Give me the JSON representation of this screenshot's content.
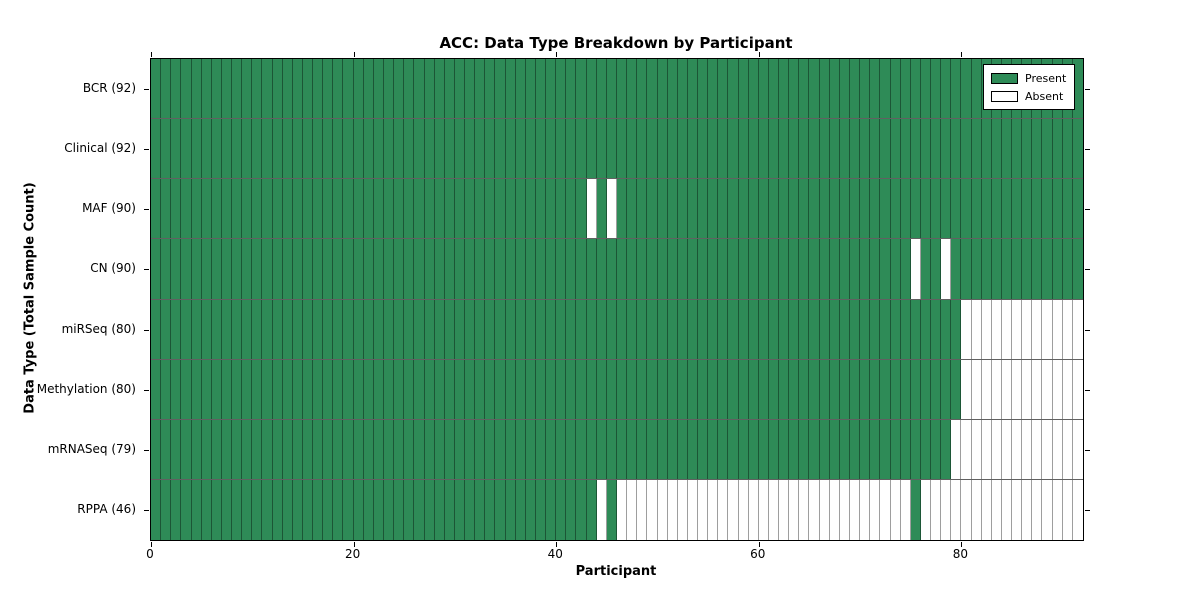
{
  "colors": {
    "present": "#2e8b57",
    "absent": "#ffffff",
    "frame": "#000000"
  },
  "chart_data": {
    "type": "heatmap",
    "title": "ACC: Data Type Breakdown by Participant",
    "xlabel": "Participant",
    "ylabel": "Data Type (Total Sample Count)",
    "xlim": [
      0,
      92
    ],
    "n_participants": 92,
    "x_ticks": [
      0,
      20,
      40,
      60,
      80
    ],
    "grid": "off",
    "legend_position": "upper right",
    "legend": [
      {
        "label": "Present",
        "color": "#2e8b57"
      },
      {
        "label": "Absent",
        "color": "#ffffff"
      }
    ],
    "rows": [
      {
        "label": "BCR (92)",
        "data_type": "BCR",
        "total": 92,
        "absent_participants": []
      },
      {
        "label": "Clinical (92)",
        "data_type": "Clinical",
        "total": 92,
        "absent_participants": []
      },
      {
        "label": "MAF (90)",
        "data_type": "MAF",
        "total": 90,
        "absent_participants": [
          43,
          45
        ]
      },
      {
        "label": "CN (90)",
        "data_type": "CN",
        "total": 90,
        "absent_participants": [
          75,
          78
        ]
      },
      {
        "label": "miRSeq (80)",
        "data_type": "miRSeq",
        "total": 80,
        "absent_participants": [
          80,
          81,
          82,
          83,
          84,
          85,
          86,
          87,
          88,
          89,
          90,
          91
        ]
      },
      {
        "label": "Methylation (80)",
        "data_type": "Methylation",
        "total": 80,
        "absent_participants": [
          80,
          81,
          82,
          83,
          84,
          85,
          86,
          87,
          88,
          89,
          90,
          91
        ]
      },
      {
        "label": "mRNASeq (79)",
        "data_type": "mRNASeq",
        "total": 79,
        "absent_participants": [
          79,
          80,
          81,
          82,
          83,
          84,
          85,
          86,
          87,
          88,
          89,
          90,
          91
        ]
      },
      {
        "label": "RPPA (46)",
        "data_type": "RPPA",
        "total": 46,
        "absent_participants": [
          44,
          46,
          47,
          48,
          49,
          50,
          51,
          52,
          53,
          54,
          55,
          56,
          57,
          58,
          59,
          60,
          61,
          62,
          63,
          64,
          65,
          66,
          67,
          68,
          69,
          70,
          71,
          72,
          73,
          74,
          76,
          77,
          78,
          79,
          80,
          81,
          82,
          83,
          84,
          85,
          86,
          87,
          88,
          89,
          90,
          91
        ]
      }
    ]
  }
}
